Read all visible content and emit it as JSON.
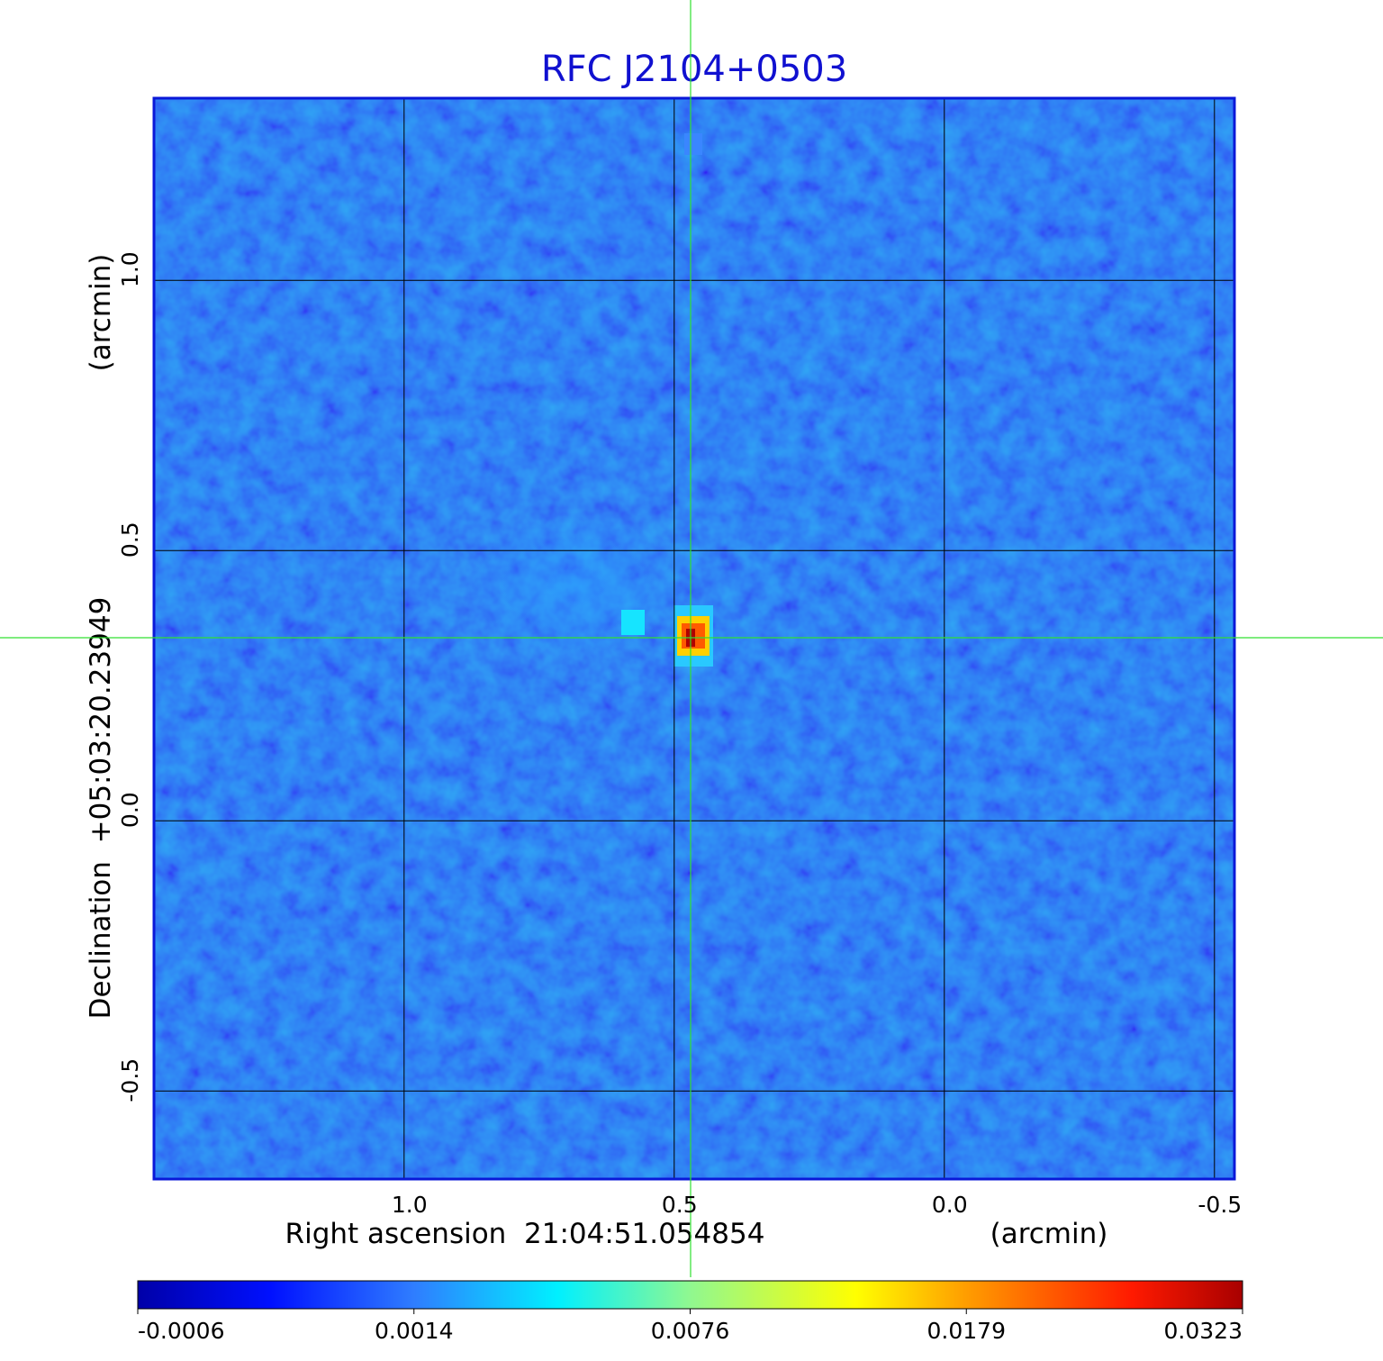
{
  "chart_data": {
    "type": "image",
    "title": "RFC J2104+0503",
    "xlabel": "Right ascension  21:04:51.054854",
    "xunit": "(arcmin)",
    "ylabel": "Declination  +05:03:20.23949",
    "yunit": "(arcmin)",
    "xlim": [
      1.463,
      -0.537
    ],
    "ylim": [
      -0.663,
      1.337
    ],
    "xticks": [
      {
        "value": 1,
        "label": "1.0"
      },
      0.5,
      {
        "value": 0,
        "label": "0.0"
      },
      -0.5
    ],
    "yticks": [
      {
        "value": 1,
        "label": "1.0"
      },
      0.5,
      {
        "value": 0,
        "label": "0.0"
      },
      -0.5
    ],
    "grid": true,
    "colorbar_ticks": [
      -0.0006,
      0.0014,
      0.0076,
      0.0179,
      0.0323
    ]
  }
}
